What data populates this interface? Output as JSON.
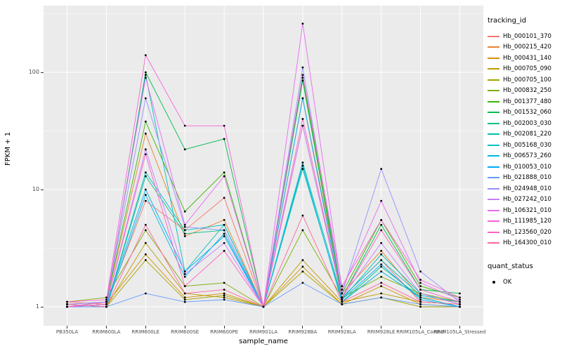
{
  "figure": {
    "bg": "#FFFFFF",
    "panel_bg": "#EBEBEB",
    "grid_color": "#FFFFFF",
    "point_color": "#000000",
    "tick_color": "#333333"
  },
  "axes": {
    "y_title": "FPKM + 1",
    "x_title": "sample_name",
    "y_ticks": [
      {
        "label": "1",
        "value": 1
      },
      {
        "label": "10",
        "value": 10
      },
      {
        "label": "100",
        "value": 100
      }
    ]
  },
  "legend": {
    "color_title": "tracking_id",
    "shape_title": "quant_status",
    "shape_items": [
      {
        "label": "OK"
      }
    ]
  },
  "chart_data": {
    "type": "line",
    "title": "",
    "xlabel": "sample_name",
    "ylabel": "FPKM + 1",
    "y_scale": "log10",
    "ylim": [
      1,
      300
    ],
    "grid": true,
    "legend_position": "right",
    "categories": [
      "PB350LA",
      "RRIM600LA",
      "RRIM600LE",
      "RRIM600SE",
      "RRIM600PE",
      "RRIM901LA",
      "RRIM928BA",
      "RRIM928LA",
      "RRIM928LE",
      "RRIM105LA_Control",
      "RRIM105LA_Stressed"
    ],
    "series": [
      {
        "name": "Hb_000101_370",
        "color": "#F8766D",
        "values": [
          1.1,
          1.05,
          8,
          4.5,
          8.5,
          1,
          35,
          1.2,
          2.5,
          1.1,
          1.05
        ]
      },
      {
        "name": "Hb_000215_420",
        "color": "#EA8331",
        "values": [
          1.05,
          1.1,
          30,
          4,
          5.5,
          1,
          60,
          1.3,
          3,
          1.2,
          1.1
        ]
      },
      {
        "name": "Hb_000431_140",
        "color": "#D89000",
        "values": [
          1,
          1.05,
          2.8,
          1.2,
          1.3,
          1,
          2.2,
          1.05,
          1.5,
          1.05,
          1
        ]
      },
      {
        "name": "Hb_000705_090",
        "color": "#C09B00",
        "values": [
          1.05,
          1,
          3.5,
          1.3,
          1.2,
          1,
          2.5,
          1.1,
          1.3,
          1.1,
          1.05
        ]
      },
      {
        "name": "Hb_000705_100",
        "color": "#A3A500",
        "values": [
          1,
          1,
          2.5,
          1.15,
          1.25,
          1,
          2,
          1.05,
          1.2,
          1,
          1
        ]
      },
      {
        "name": "Hb_000832_250",
        "color": "#7CAE00",
        "values": [
          1.1,
          1.2,
          4.5,
          1.5,
          1.6,
          1,
          4.5,
          1.2,
          1.8,
          1.3,
          1.1
        ]
      },
      {
        "name": "Hb_001377_480",
        "color": "#39B600",
        "values": [
          1,
          1.1,
          38,
          6.5,
          14,
          1,
          90,
          1.3,
          5.5,
          1.5,
          1.2
        ]
      },
      {
        "name": "Hb_001532_060",
        "color": "#00BB4E",
        "values": [
          1,
          1.05,
          100,
          22,
          27,
          1,
          85,
          1.2,
          5,
          1.4,
          1.3
        ]
      },
      {
        "name": "Hb_002003_030",
        "color": "#00C087",
        "values": [
          1,
          1,
          13,
          4.2,
          4.5,
          1,
          16,
          1.1,
          2.2,
          1.2,
          1
        ]
      },
      {
        "name": "Hb_002081_220",
        "color": "#00C0B4",
        "values": [
          1,
          1.05,
          95,
          2,
          5,
          1,
          15,
          1.15,
          2.8,
          1.3,
          1.05
        ]
      },
      {
        "name": "Hb_005168_030",
        "color": "#00BFC4",
        "values": [
          1.05,
          1,
          14,
          4.5,
          5,
          1,
          17,
          1.2,
          2.5,
          1.25,
          1.1
        ]
      },
      {
        "name": "Hb_006573_260",
        "color": "#00B8E5",
        "values": [
          1,
          1,
          9,
          1.8,
          4.2,
          1,
          16,
          1.1,
          2,
          1.2,
          1
        ]
      },
      {
        "name": "Hb_010053_010",
        "color": "#00ACFC",
        "values": [
          1,
          1.05,
          10,
          2,
          4,
          1,
          60,
          1.15,
          2.3,
          1.15,
          1
        ]
      },
      {
        "name": "Hb_021888_010",
        "color": "#619CFF",
        "values": [
          1,
          1,
          1.3,
          1.1,
          1.15,
          1,
          1.6,
          1.05,
          1.2,
          1.05,
          1
        ]
      },
      {
        "name": "Hb_024948_010",
        "color": "#9590FF",
        "values": [
          1.05,
          1.1,
          60,
          4.8,
          4.5,
          1,
          110,
          1.3,
          15,
          2,
          1.1
        ]
      },
      {
        "name": "Hb_027242_010",
        "color": "#C77CFF",
        "values": [
          1,
          1.05,
          22,
          1.9,
          3.5,
          1,
          35,
          1.2,
          3.5,
          1.3,
          1.05
        ]
      },
      {
        "name": "Hb_106321_010",
        "color": "#E76BF3",
        "values": [
          1,
          1.1,
          90,
          5,
          13,
          1,
          260,
          1.4,
          8,
          1.6,
          1.15
        ]
      },
      {
        "name": "Hb_111985_120",
        "color": "#FA62DB",
        "values": [
          1.1,
          1.15,
          140,
          35,
          35,
          1,
          95,
          1.5,
          5.5,
          1.7,
          1.2
        ]
      },
      {
        "name": "Hb_123560_020",
        "color": "#FF61C3",
        "values": [
          1,
          1.05,
          20,
          1.5,
          3,
          1,
          40,
          1.2,
          4.5,
          1.4,
          1.1
        ]
      },
      {
        "name": "Hb_164300_010",
        "color": "#FF689E",
        "values": [
          1.05,
          1,
          5,
          1.3,
          1.4,
          1,
          6,
          1.1,
          1.6,
          1.1,
          1.05
        ]
      }
    ]
  }
}
